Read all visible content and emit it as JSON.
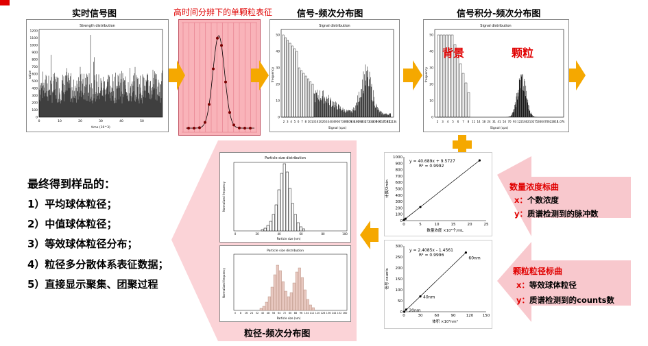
{
  "panels": {
    "realtime": {
      "title": "实时信号图",
      "chart_title": "Strength distribution",
      "xlabel": "time (10^3)",
      "ylabel": "value"
    },
    "single": {
      "title": "高时间分辨下的单颗粒表征"
    },
    "freq": {
      "title": "信号-频次分布图",
      "chart_title": "Signal distribution",
      "xlabel": "Signal (cps)",
      "ylabel": "frequency"
    },
    "integral": {
      "title": "信号积分-频次分布图",
      "chart_title": "Signal distribution",
      "xlabel": "Signal (cps)",
      "ylabel": "frequency",
      "label_background": "背景",
      "label_particle": "颗粒"
    }
  },
  "summary": {
    "heading": "最终得到样品的：",
    "items": [
      "1）平均球体粒径；",
      "2）中值球体粒径；",
      "3）等效球体粒径分布；",
      "4）粒径多分散体系表征数据；",
      "5）直接显示聚集、团聚过程"
    ]
  },
  "psd": {
    "caption": "粒径-频次分布图",
    "top_title": "Particle size distribution",
    "bottom_title": "Particle size distribution",
    "xlabel": "Particle size (nm)",
    "ylabel": "Normalized frequency"
  },
  "calibrations": {
    "number": {
      "title": "数量浓度标曲",
      "x_label": "x：",
      "x_text": "个数浓度",
      "y_label": "y：",
      "y_text": "质谱检测到的脉冲数"
    },
    "size": {
      "title": "颗粒粒径标曲",
      "x_label": "x：",
      "x_text": "等效球体粒径",
      "y_label": "y：",
      "y_text": "质谱检测到的counts数"
    }
  },
  "chart_data": [
    {
      "type": "scatter",
      "name": "number-concentration-calibration",
      "equation": "y = 40.689x + 9.5727",
      "r2": "R² = 0.9992",
      "x": [
        0,
        0.5,
        5,
        23
      ],
      "y": [
        10,
        30,
        213,
        945
      ],
      "xlim": [
        0,
        25
      ],
      "ylim": [
        0,
        1000
      ],
      "xticks": [
        0,
        5,
        10,
        15,
        20,
        25
      ],
      "yticks": [
        0,
        100,
        200,
        300,
        400,
        500,
        600,
        700,
        800,
        900,
        1000
      ],
      "xlabel": "数量浓度 ×10⁵个/mL",
      "ylabel": "计数/2min"
    },
    {
      "type": "scatter",
      "name": "particle-size-calibration",
      "equation": "y = 2.4085x - 1.4561",
      "r2": "R² = 0.9996",
      "x": [
        0.7,
        4.2,
        30,
        113
      ],
      "y": [
        0,
        10,
        70,
        270
      ],
      "point_labels": [
        "",
        "20nm",
        "40nm",
        "60nm"
      ],
      "xlim": [
        0,
        150
      ],
      "ylim": [
        0,
        300
      ],
      "xticks": [
        0,
        30,
        60,
        90,
        120,
        150
      ],
      "yticks": [
        0,
        50,
        100,
        150,
        200,
        250,
        300
      ],
      "xlabel": "体积 ×10³nm³",
      "ylabel": "信号 counts"
    }
  ]
}
